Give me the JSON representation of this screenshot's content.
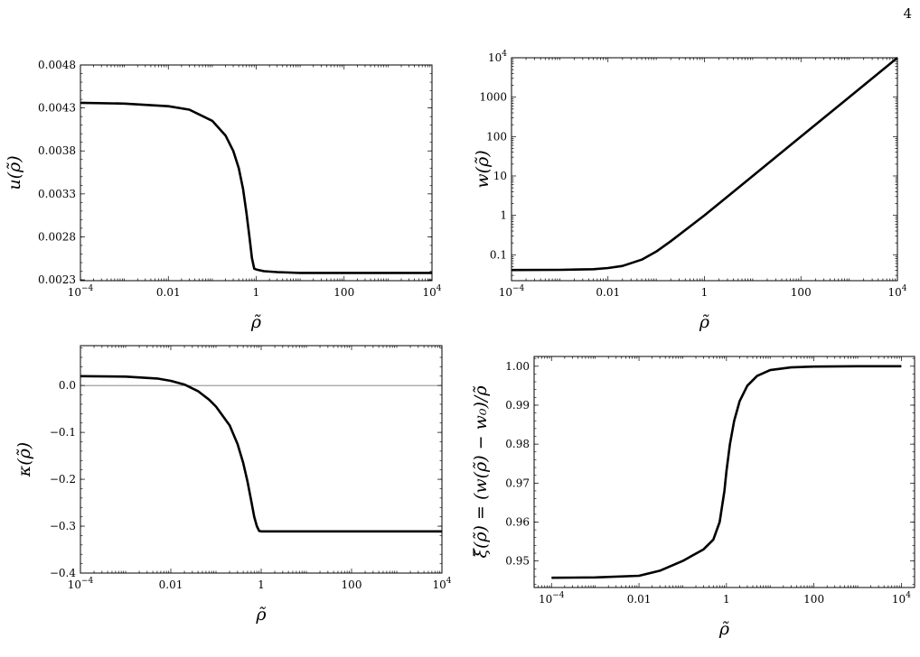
{
  "page_number": "4",
  "chart_data": [
    {
      "type": "line",
      "xlabel": "ρ̃",
      "ylabel": "u(ρ̃)",
      "x_scale": "log",
      "y_scale": "linear",
      "xlim": [
        0.0001,
        10000
      ],
      "ylim": [
        0.00229,
        0.0048
      ],
      "x_ticks": [
        {
          "value": 0.0001,
          "label": "10",
          "sup": "−4"
        },
        {
          "value": 0.01,
          "label": "0.01",
          "sup": ""
        },
        {
          "value": 1,
          "label": "1",
          "sup": ""
        },
        {
          "value": 100,
          "label": "100",
          "sup": ""
        },
        {
          "value": 10000,
          "label": "10",
          "sup": "4"
        }
      ],
      "y_ticks": [
        {
          "value": 0.0023,
          "label": "0.0023"
        },
        {
          "value": 0.0028,
          "label": "0.0028"
        },
        {
          "value": 0.0033,
          "label": "0.0033"
        },
        {
          "value": 0.0038,
          "label": "0.0038"
        },
        {
          "value": 0.0043,
          "label": "0.0043"
        },
        {
          "value": 0.0048,
          "label": "0.0048"
        }
      ],
      "x": [
        0.0001,
        0.001,
        0.01,
        0.03,
        0.1,
        0.2,
        0.3,
        0.4,
        0.5,
        0.6,
        0.7,
        0.8,
        0.9,
        1.0,
        1.5,
        3,
        10,
        100,
        1000,
        10000
      ],
      "y": [
        0.00436,
        0.00435,
        0.00432,
        0.00428,
        0.00415,
        0.00398,
        0.0038,
        0.0036,
        0.00336,
        0.00308,
        0.0028,
        0.00255,
        0.00243,
        0.00242,
        0.0024,
        0.00239,
        0.00238,
        0.00238,
        0.00238,
        0.00238
      ],
      "grid": false,
      "reference_line": null
    },
    {
      "type": "line",
      "xlabel": "ρ̃",
      "ylabel": "w(ρ̃)",
      "x_scale": "log",
      "y_scale": "log",
      "xlim": [
        0.0001,
        10000
      ],
      "ylim": [
        0.022,
        10000
      ],
      "x_ticks": [
        {
          "value": 0.0001,
          "label": "10",
          "sup": "−4"
        },
        {
          "value": 0.01,
          "label": "0.01",
          "sup": ""
        },
        {
          "value": 1,
          "label": "1",
          "sup": ""
        },
        {
          "value": 100,
          "label": "100",
          "sup": ""
        },
        {
          "value": 10000,
          "label": "10",
          "sup": "4"
        }
      ],
      "y_ticks": [
        {
          "value": 0.1,
          "label": "0.1",
          "sup": ""
        },
        {
          "value": 1,
          "label": "1",
          "sup": ""
        },
        {
          "value": 10,
          "label": "10",
          "sup": ""
        },
        {
          "value": 100,
          "label": "100",
          "sup": ""
        },
        {
          "value": 1000,
          "label": "1000",
          "sup": ""
        },
        {
          "value": 10000,
          "label": "10",
          "sup": "4"
        }
      ],
      "x": [
        0.0001,
        0.001,
        0.005,
        0.01,
        0.02,
        0.05,
        0.1,
        0.2,
        0.5,
        1,
        2,
        10,
        100,
        1000,
        10000
      ],
      "y": [
        0.041,
        0.0415,
        0.043,
        0.046,
        0.052,
        0.075,
        0.12,
        0.22,
        0.52,
        1.0,
        2.0,
        10,
        100,
        1000,
        10000
      ],
      "grid": false,
      "reference_line": null
    },
    {
      "type": "line",
      "xlabel": "ρ̃",
      "ylabel": "κ(ρ̃)",
      "x_scale": "log",
      "y_scale": "linear",
      "xlim": [
        0.0001,
        10000
      ],
      "ylim": [
        -0.4,
        0.085
      ],
      "x_ticks": [
        {
          "value": 0.0001,
          "label": "10",
          "sup": "−4"
        },
        {
          "value": 0.01,
          "label": "0.01",
          "sup": ""
        },
        {
          "value": 1,
          "label": "1",
          "sup": ""
        },
        {
          "value": 100,
          "label": "100",
          "sup": ""
        },
        {
          "value": 10000,
          "label": "10",
          "sup": "4"
        }
      ],
      "y_ticks": [
        {
          "value": -0.4,
          "label": "−0.4"
        },
        {
          "value": -0.3,
          "label": "−0.3"
        },
        {
          "value": -0.2,
          "label": "−0.2"
        },
        {
          "value": -0.1,
          "label": "−0.1"
        },
        {
          "value": 0.0,
          "label": "0.0"
        }
      ],
      "x": [
        0.0001,
        0.001,
        0.005,
        0.01,
        0.02,
        0.04,
        0.07,
        0.1,
        0.2,
        0.3,
        0.4,
        0.5,
        0.6,
        0.7,
        0.8,
        0.9,
        1.0,
        2,
        10,
        100,
        1000,
        10000
      ],
      "y": [
        0.02,
        0.019,
        0.015,
        0.01,
        0.002,
        -0.012,
        -0.03,
        -0.045,
        -0.085,
        -0.125,
        -0.165,
        -0.205,
        -0.245,
        -0.28,
        -0.3,
        -0.31,
        -0.311,
        -0.311,
        -0.311,
        -0.311,
        -0.311,
        -0.311
      ],
      "grid": false,
      "reference_line": 0
    },
    {
      "type": "line",
      "xlabel": "ρ̃",
      "ylabel": "ξ̃(ρ̃) = (w(ρ̃) − w₀)/ρ̃",
      "x_scale": "log",
      "y_scale": "linear",
      "xlim": [
        4e-05,
        20000
      ],
      "ylim": [
        0.9432,
        1.0025
      ],
      "x_ticks": [
        {
          "value": 0.0001,
          "label": "10",
          "sup": "−4"
        },
        {
          "value": 0.01,
          "label": "0.01",
          "sup": ""
        },
        {
          "value": 1,
          "label": "1",
          "sup": ""
        },
        {
          "value": 100,
          "label": "100",
          "sup": ""
        },
        {
          "value": 10000,
          "label": "10",
          "sup": "4"
        }
      ],
      "y_ticks": [
        {
          "value": 0.95,
          "label": "0.95"
        },
        {
          "value": 0.96,
          "label": "0.96"
        },
        {
          "value": 0.97,
          "label": "0.97"
        },
        {
          "value": 0.98,
          "label": "0.98"
        },
        {
          "value": 0.99,
          "label": "0.99"
        },
        {
          "value": 1.0,
          "label": "1.00"
        }
      ],
      "x": [
        0.0001,
        0.001,
        0.01,
        0.03,
        0.1,
        0.3,
        0.5,
        0.7,
        0.9,
        1.0,
        1.2,
        1.5,
        2,
        3,
        5,
        10,
        30,
        100,
        1000,
        10000
      ],
      "y": [
        0.9457,
        0.9458,
        0.9462,
        0.9475,
        0.95,
        0.953,
        0.9555,
        0.96,
        0.968,
        0.973,
        0.98,
        0.986,
        0.991,
        0.995,
        0.9975,
        0.999,
        0.9997,
        0.9999,
        1.0,
        1.0
      ],
      "grid": false,
      "reference_line": null
    }
  ]
}
